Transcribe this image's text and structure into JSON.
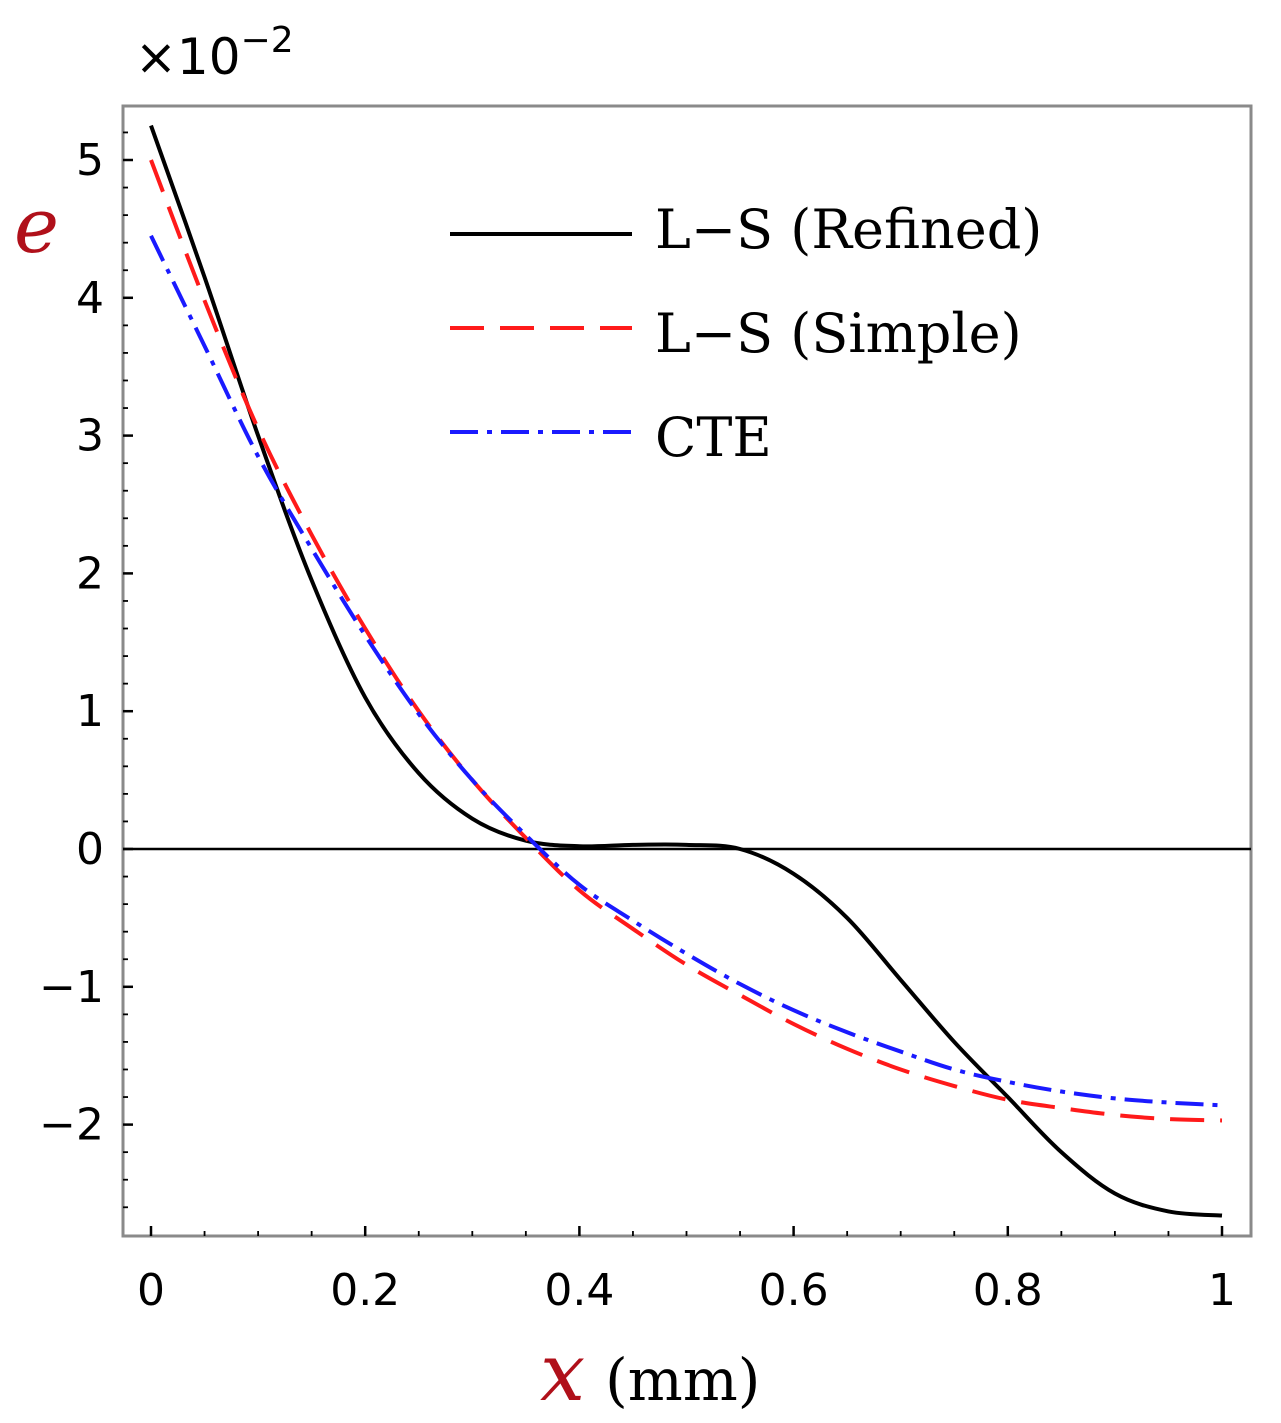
{
  "chart_data": {
    "type": "line",
    "title": "",
    "xlabel_var": "x",
    "xlabel_unit": "(mm)",
    "ylabel": "e",
    "y_scale_label": "×10",
    "y_scale_exponent": "−2",
    "xlim": [
      0,
      1
    ],
    "ylim": [
      -2.7,
      5.3
    ],
    "x_ticks": [
      0,
      0.2,
      0.4,
      0.6,
      0.8,
      1
    ],
    "x_tick_labels": [
      "0",
      "0.2",
      "0.4",
      "0.6",
      "0.8",
      "1"
    ],
    "y_ticks": [
      -2,
      -1,
      0,
      1,
      2,
      3,
      4,
      5
    ],
    "y_tick_labels": [
      "−2",
      "−1",
      "0",
      "1",
      "2",
      "3",
      "4",
      "5"
    ],
    "legend_position": "top-right",
    "series": [
      {
        "name": "L−S (Refined)",
        "color": "#000000",
        "style": "solid",
        "x": [
          0,
          0.05,
          0.1,
          0.15,
          0.2,
          0.25,
          0.3,
          0.35,
          0.4,
          0.45,
          0.5,
          0.55,
          0.6,
          0.65,
          0.7,
          0.75,
          0.8,
          0.85,
          0.9,
          0.95,
          1.0
        ],
        "y": [
          5.25,
          4.15,
          3.0,
          1.95,
          1.1,
          0.55,
          0.22,
          0.06,
          0.02,
          0.03,
          0.03,
          0.0,
          -0.18,
          -0.5,
          -0.95,
          -1.4,
          -1.8,
          -2.2,
          -2.5,
          -2.63,
          -2.66
        ]
      },
      {
        "name": "L−S (Simple)",
        "color": "#ff1a1a",
        "style": "dashed",
        "x": [
          0,
          0.05,
          0.1,
          0.15,
          0.2,
          0.25,
          0.3,
          0.35,
          0.4,
          0.45,
          0.5,
          0.55,
          0.6,
          0.65,
          0.7,
          0.75,
          0.8,
          0.85,
          0.9,
          0.95,
          1.0
        ],
        "y": [
          5.0,
          3.98,
          3.05,
          2.28,
          1.6,
          1.0,
          0.5,
          0.08,
          -0.3,
          -0.58,
          -0.84,
          -1.06,
          -1.27,
          -1.45,
          -1.6,
          -1.72,
          -1.82,
          -1.88,
          -1.93,
          -1.96,
          -1.97
        ]
      },
      {
        "name": "CTE",
        "color": "#1a1aff",
        "style": "dashdot",
        "x": [
          0,
          0.05,
          0.1,
          0.15,
          0.2,
          0.25,
          0.3,
          0.35,
          0.4,
          0.45,
          0.5,
          0.55,
          0.6,
          0.65,
          0.7,
          0.75,
          0.8,
          0.85,
          0.9,
          0.95,
          1.0
        ],
        "y": [
          4.45,
          3.65,
          2.85,
          2.18,
          1.55,
          0.98,
          0.5,
          0.1,
          -0.26,
          -0.52,
          -0.76,
          -0.98,
          -1.17,
          -1.33,
          -1.47,
          -1.6,
          -1.69,
          -1.76,
          -1.81,
          -1.84,
          -1.86
        ]
      }
    ]
  }
}
